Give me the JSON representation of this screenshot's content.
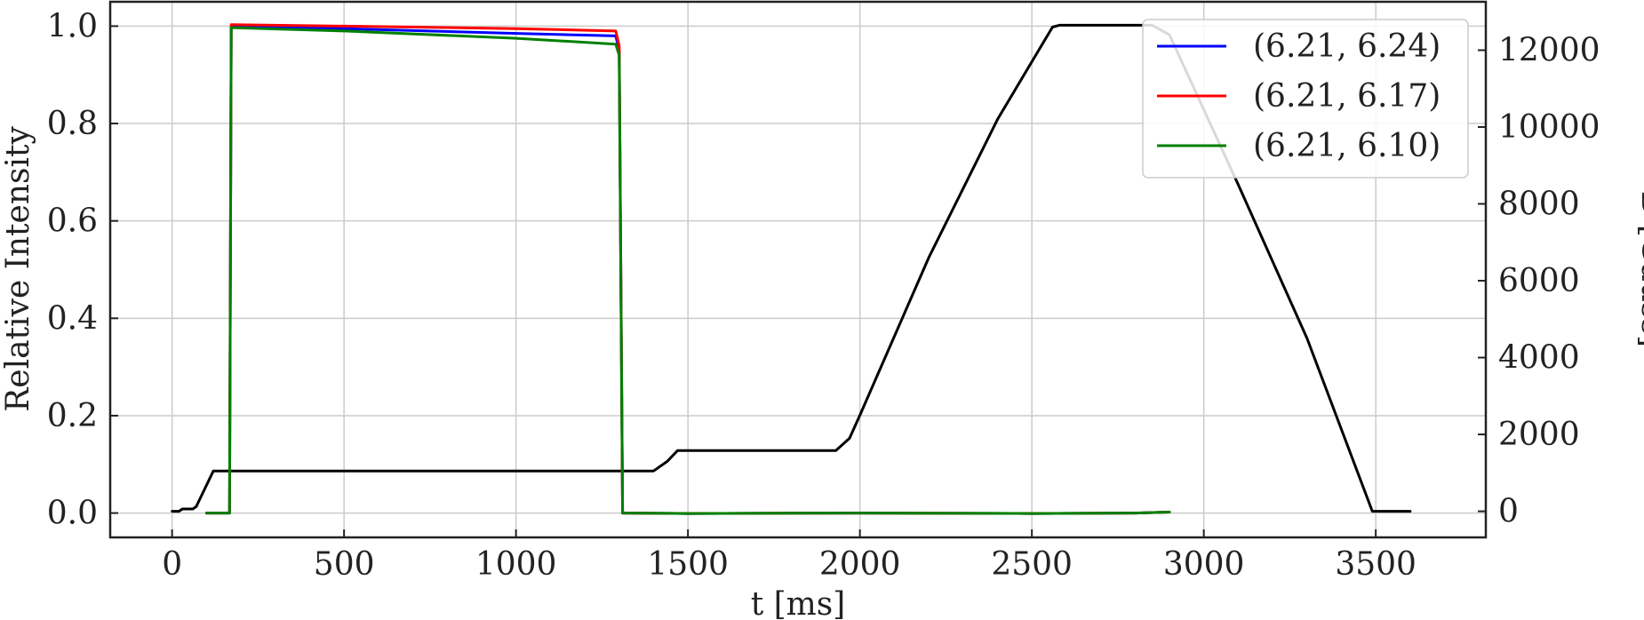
{
  "chart_data": {
    "type": "line",
    "title": "",
    "xlabel": "t [ms]",
    "ylabel": "Relative Intensity",
    "y2label": "B [Gauss]",
    "xlim": [
      -180,
      3820
    ],
    "ylim": [
      -0.05,
      1.05
    ],
    "y2lim": [
      -680,
      13260
    ],
    "xticks": [
      "0",
      "500",
      "1000",
      "1500",
      "2000",
      "2500",
      "3000",
      "3500"
    ],
    "yticks": [
      "0.0",
      "0.2",
      "0.4",
      "0.6",
      "0.8",
      "1.0"
    ],
    "y2ticks": [
      "0",
      "2000",
      "4000",
      "6000",
      "8000",
      "10000",
      "12000"
    ],
    "grid": true,
    "legend_position": "top-right",
    "series": [
      {
        "name": "(6.21, 6.24)",
        "color": "#0000ff",
        "axis": "left",
        "points": [
          [
            100,
            0.0
          ],
          [
            167,
            0.0
          ],
          [
            172,
            1.0
          ],
          [
            500,
            0.995
          ],
          [
            1000,
            0.985
          ],
          [
            1290,
            0.98
          ],
          [
            1300,
            0.95
          ],
          [
            1310,
            0.0
          ],
          [
            1500,
            -0.001
          ],
          [
            2000,
            0.0
          ],
          [
            2500,
            -0.001
          ],
          [
            2800,
            0.0
          ],
          [
            2900,
            0.002
          ]
        ]
      },
      {
        "name": "(6.21, 6.17)",
        "color": "#ff0000",
        "axis": "left",
        "points": [
          [
            100,
            0.0
          ],
          [
            167,
            0.0
          ],
          [
            172,
            1.003
          ],
          [
            500,
            1.0
          ],
          [
            1000,
            0.995
          ],
          [
            1290,
            0.99
          ],
          [
            1300,
            0.96
          ],
          [
            1310,
            0.0
          ],
          [
            1500,
            -0.001
          ],
          [
            2000,
            0.0
          ],
          [
            2500,
            -0.001
          ],
          [
            2800,
            0.0
          ],
          [
            2900,
            0.002
          ]
        ]
      },
      {
        "name": "(6.21, 6.10)",
        "color": "#008000",
        "axis": "left",
        "points": [
          [
            100,
            0.0
          ],
          [
            167,
            0.0
          ],
          [
            172,
            0.997
          ],
          [
            500,
            0.99
          ],
          [
            1000,
            0.975
          ],
          [
            1290,
            0.963
          ],
          [
            1300,
            0.94
          ],
          [
            1310,
            0.0
          ],
          [
            1500,
            -0.001
          ],
          [
            2000,
            0.0
          ],
          [
            2500,
            -0.001
          ],
          [
            2800,
            0.0
          ],
          [
            2900,
            0.002
          ]
        ]
      },
      {
        "name": "",
        "color": "#000000",
        "axis": "right",
        "points": [
          [
            0,
            0
          ],
          [
            20,
            0
          ],
          [
            30,
            60
          ],
          [
            60,
            60
          ],
          [
            70,
            120
          ],
          [
            120,
            1050
          ],
          [
            1400,
            1050
          ],
          [
            1440,
            1300
          ],
          [
            1470,
            1580
          ],
          [
            1930,
            1580
          ],
          [
            1970,
            1900
          ],
          [
            2000,
            2500
          ],
          [
            2200,
            6600
          ],
          [
            2400,
            10200
          ],
          [
            2560,
            12600
          ],
          [
            2580,
            12650
          ],
          [
            2850,
            12650
          ],
          [
            2900,
            12400
          ],
          [
            3100,
            8500
          ],
          [
            3300,
            4500
          ],
          [
            3490,
            0
          ],
          [
            3600,
            0
          ]
        ]
      }
    ]
  }
}
